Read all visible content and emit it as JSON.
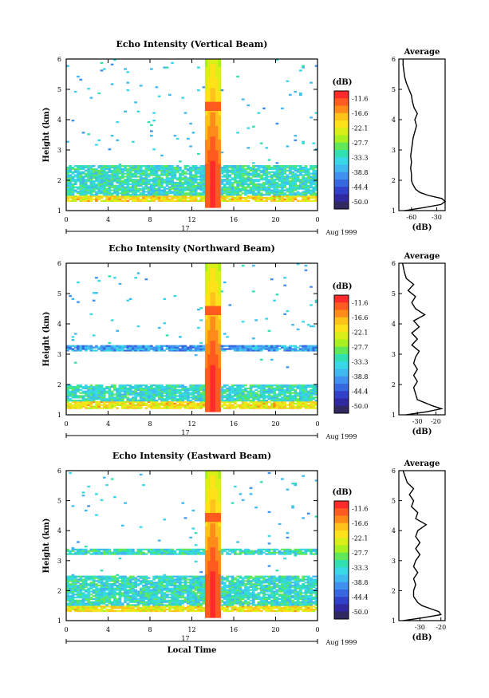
{
  "figure": {
    "ylabel": "Height (km)",
    "xlabel": "Local Time",
    "colorbar_unit": "(dB)",
    "colorbar_ticks": [
      "-11.6",
      "-16.6",
      "-22.1",
      "-27.7",
      "-33.3",
      "-38.8",
      "-44.4",
      "-50.0"
    ],
    "colorbar_colors": [
      "#ff2a2a",
      "#ff5a20",
      "#ff8c1a",
      "#ffc21a",
      "#ffe21a",
      "#d8f018",
      "#a8f020",
      "#60e858",
      "#30e0b0",
      "#38d8e8",
      "#40b8f0",
      "#4090f0",
      "#3868e0",
      "#3040c8",
      "#3028a0",
      "#302860"
    ],
    "average_title": "Average",
    "date_label": "Aug 1999",
    "day_label": "17"
  },
  "chart_data": [
    {
      "type": "heatmap",
      "title": "Echo Intensity (Vertical Beam)",
      "xlabel": "",
      "ylabel": "Height (km)",
      "xlim": [
        0,
        24
      ],
      "ylim": [
        1,
        6
      ],
      "xticks": [
        "0",
        "4",
        "8",
        "12",
        "16",
        "20",
        "0"
      ],
      "yticks": [
        "1",
        "2",
        "3",
        "4",
        "5",
        "6"
      ],
      "colorbar_range_db": [
        -50.0,
        -11.6
      ],
      "features": [
        {
          "name": "bright layer",
          "height_km": [
            1.3,
            1.5
          ],
          "db": -22.1
        },
        {
          "name": "layer",
          "height_km": [
            1.5,
            2.5
          ],
          "db": -33.3
        },
        {
          "name": "convective column",
          "time_h": [
            13.2,
            14.8
          ],
          "height_km": [
            1.1,
            6.0
          ],
          "db": -11.6
        }
      ],
      "profile": {
        "title": "Average",
        "xlabel": "(dB)",
        "xticks": [
          "-60",
          "-30"
        ],
        "xlim": [
          -75,
          -20
        ],
        "ylim": [
          1,
          6
        ],
        "height_km": [
          1.0,
          1.1,
          1.2,
          1.3,
          1.4,
          1.5,
          1.6,
          1.7,
          1.8,
          1.9,
          2.0,
          2.2,
          2.4,
          2.6,
          2.8,
          3.0,
          3.2,
          3.4,
          3.6,
          3.8,
          4.0,
          4.2,
          4.4,
          4.6,
          4.8,
          5.0,
          5.2,
          5.4,
          5.6,
          5.8,
          6.0
        ],
        "db": [
          -68,
          -45,
          -25,
          -20,
          -24,
          -40,
          -50,
          -55,
          -57,
          -59,
          -60,
          -60,
          -61,
          -60,
          -61,
          -60,
          -59,
          -58,
          -56,
          -54,
          -56,
          -53,
          -57,
          -59,
          -60,
          -63,
          -66,
          -68,
          -69,
          -70,
          -70
        ]
      }
    },
    {
      "type": "heatmap",
      "title": "Echo Intensity (Northward Beam)",
      "xlabel": "",
      "ylabel": "Height (km)",
      "xlim": [
        0,
        24
      ],
      "ylim": [
        1,
        6
      ],
      "xticks": [
        "0",
        "4",
        "8",
        "12",
        "16",
        "20",
        "0"
      ],
      "yticks": [
        "1",
        "2",
        "3",
        "4",
        "5",
        "6"
      ],
      "colorbar_range_db": [
        -50.0,
        -11.6
      ],
      "features": [
        {
          "name": "bright layer",
          "height_km": [
            1.2,
            1.45
          ],
          "db": -22.1
        },
        {
          "name": "layer",
          "height_km": [
            1.45,
            2.0
          ],
          "db": -33.3
        },
        {
          "name": "layer",
          "height_km": [
            3.1,
            3.3
          ],
          "db": -38.8
        },
        {
          "name": "convective column",
          "time_h": [
            13.2,
            14.8
          ],
          "height_km": [
            1.1,
            6.0
          ],
          "db": -11.6
        }
      ],
      "profile": {
        "title": "Average",
        "xlabel": "(dB)",
        "xticks": [
          "-30",
          "-20"
        ],
        "xlim": [
          -40,
          -15
        ],
        "ylim": [
          1,
          6
        ],
        "height_km": [
          1.0,
          1.1,
          1.2,
          1.3,
          1.4,
          1.5,
          1.7,
          1.9,
          2.1,
          2.3,
          2.5,
          2.7,
          2.9,
          3.1,
          3.3,
          3.5,
          3.7,
          3.9,
          4.1,
          4.3,
          4.5,
          4.7,
          4.9,
          5.1,
          5.3,
          5.5,
          5.7,
          6.0
        ],
        "db": [
          -36,
          -25,
          -17,
          -22,
          -26,
          -30,
          -31,
          -32,
          -30,
          -32,
          -30,
          -32,
          -31,
          -29,
          -33,
          -30,
          -33,
          -29,
          -32,
          -26,
          -31,
          -33,
          -31,
          -35,
          -32,
          -36,
          -37,
          -38
        ]
      }
    },
    {
      "type": "heatmap",
      "title": "Echo Intensity (Eastward Beam)",
      "xlabel": "Local Time",
      "ylabel": "Height (km)",
      "xlim": [
        0,
        24
      ],
      "ylim": [
        1,
        6
      ],
      "xticks": [
        "0",
        "4",
        "8",
        "12",
        "16",
        "20",
        "0"
      ],
      "yticks": [
        "1",
        "2",
        "3",
        "4",
        "5",
        "6"
      ],
      "colorbar_range_db": [
        -50.0,
        -11.6
      ],
      "features": [
        {
          "name": "bright layer",
          "height_km": [
            1.3,
            1.5
          ],
          "db": -22.1
        },
        {
          "name": "layer",
          "height_km": [
            1.5,
            2.5
          ],
          "db": -33.3
        },
        {
          "name": "layer",
          "height_km": [
            3.2,
            3.4
          ],
          "db": -33.3
        },
        {
          "name": "convective column",
          "time_h": [
            13.2,
            14.8
          ],
          "height_km": [
            1.1,
            6.0
          ],
          "db": -11.6
        }
      ],
      "profile": {
        "title": "Average",
        "xlabel": "(dB)",
        "xticks": [
          "-30",
          "-20"
        ],
        "xlim": [
          -40,
          -18
        ],
        "ylim": [
          1,
          6
        ],
        "height_km": [
          1.0,
          1.1,
          1.2,
          1.3,
          1.4,
          1.5,
          1.6,
          1.8,
          2.0,
          2.2,
          2.4,
          2.6,
          2.8,
          3.0,
          3.2,
          3.4,
          3.6,
          3.8,
          4.0,
          4.2,
          4.4,
          4.6,
          4.8,
          5.0,
          5.2,
          5.4,
          5.6,
          5.8,
          6.0
        ],
        "db": [
          -38,
          -28,
          -20,
          -21,
          -25,
          -29,
          -31,
          -33,
          -33,
          -32,
          -33,
          -31,
          -33,
          -32,
          -30,
          -32,
          -30,
          -32,
          -31,
          -27,
          -32,
          -31,
          -34,
          -33,
          -35,
          -33,
          -36,
          -37,
          -38
        ]
      }
    }
  ]
}
